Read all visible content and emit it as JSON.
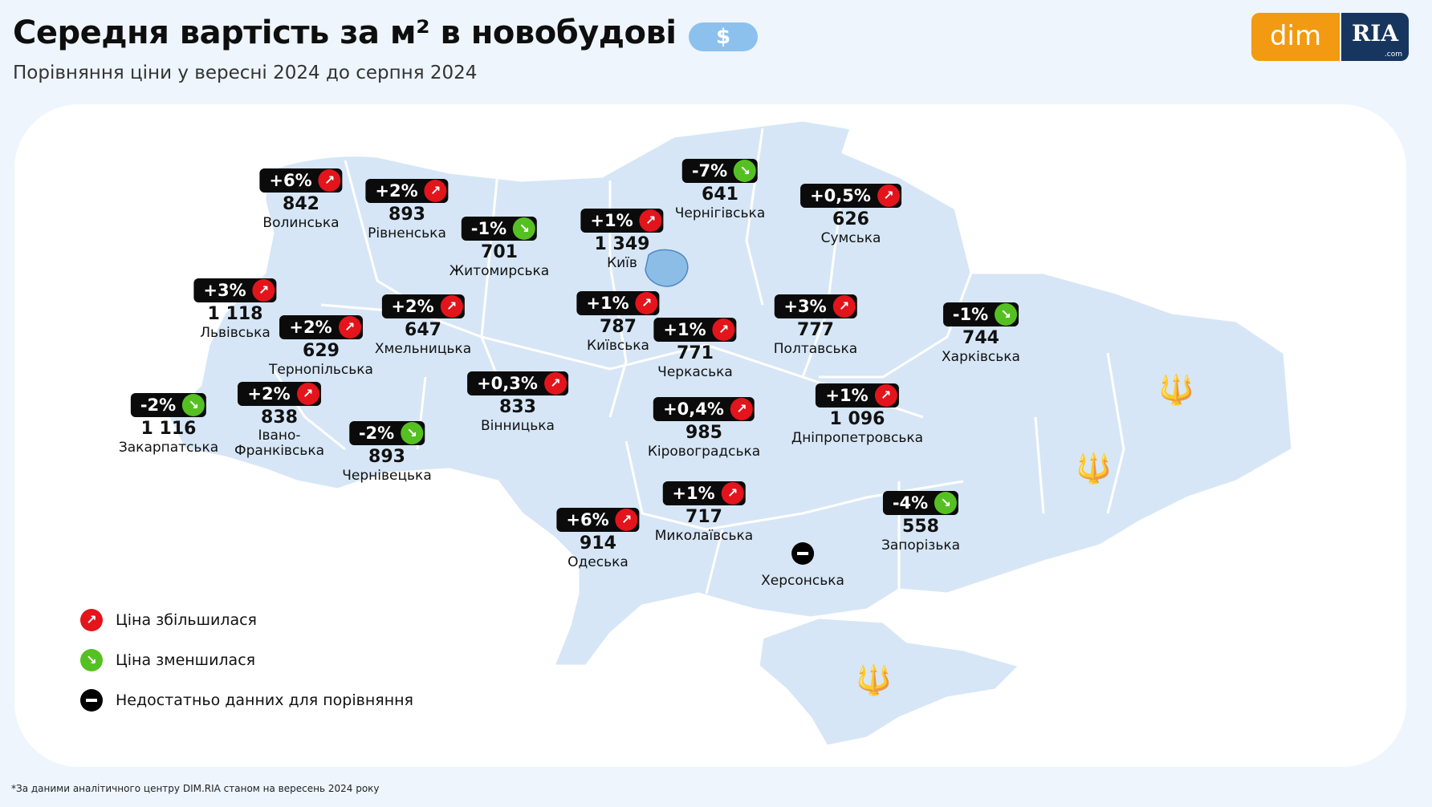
{
  "header": {
    "title": "Середня вартість за м² в новобудові",
    "currency_symbol": "$",
    "subtitle": "Порівняння ціни у вересні 2024 до серпня 2024",
    "logo": {
      "left": "dim",
      "right": "RIA",
      "right_suffix": ".com"
    }
  },
  "colors": {
    "increase": "#e3141b",
    "decrease": "#55c021",
    "no_data": "#000000",
    "map_fill": "#d6e6f6",
    "accent": "#f29a12"
  },
  "icons": {
    "increase": "arrow-up-right-icon",
    "decrease": "arrow-down-right-icon",
    "no_data": "minus-icon",
    "currency": "dollar-icon"
  },
  "regions": [
    {
      "id": "volynska",
      "name": "Волинська",
      "change": "+6%",
      "trend": "up",
      "price": "842"
    },
    {
      "id": "rivnenska",
      "name": "Рівненська",
      "change": "+2%",
      "trend": "up",
      "price": "893"
    },
    {
      "id": "zhytomyrska",
      "name": "Житомирська",
      "change": "-1%",
      "trend": "down",
      "price": "701"
    },
    {
      "id": "kyiv",
      "name": "Київ",
      "change": "+1%",
      "trend": "up",
      "price": "1 349"
    },
    {
      "id": "chernihivska",
      "name": "Чернігівська",
      "change": "-7%",
      "trend": "down",
      "price": "641"
    },
    {
      "id": "sumska",
      "name": "Сумська",
      "change": "+0,5%",
      "trend": "up",
      "price": "626"
    },
    {
      "id": "lvivska",
      "name": "Львівська",
      "change": "+3%",
      "trend": "up",
      "price": "1 118"
    },
    {
      "id": "ternopilska",
      "name": "Тернопільська",
      "change": "+2%",
      "trend": "up",
      "price": "629"
    },
    {
      "id": "khmelnytska",
      "name": "Хмельницька",
      "change": "+2%",
      "trend": "up",
      "price": "647"
    },
    {
      "id": "kyivska",
      "name": "Київська",
      "change": "+1%",
      "trend": "up",
      "price": "787"
    },
    {
      "id": "cherkaska",
      "name": "Черкаська",
      "change": "+1%",
      "trend": "up",
      "price": "771"
    },
    {
      "id": "poltavska",
      "name": "Полтавська",
      "change": "+3%",
      "trend": "up",
      "price": "777"
    },
    {
      "id": "kharkivska",
      "name": "Харківська",
      "change": "-1%",
      "trend": "down",
      "price": "744"
    },
    {
      "id": "zakarpatska",
      "name": "Закарпатська",
      "change": "-2%",
      "trend": "down",
      "price": "1 116"
    },
    {
      "id": "ivano-frankivska",
      "name": "Івано-\nФранківська",
      "change": "+2%",
      "trend": "up",
      "price": "838"
    },
    {
      "id": "chernivetska",
      "name": "Чернівецька",
      "change": "-2%",
      "trend": "down",
      "price": "893"
    },
    {
      "id": "vinnytska",
      "name": "Вінницька",
      "change": "+0,3%",
      "trend": "up",
      "price": "833"
    },
    {
      "id": "kirovohradska",
      "name": "Кіровоградська",
      "change": "+0,4%",
      "trend": "up",
      "price": "985"
    },
    {
      "id": "dnipropetrovska",
      "name": "Дніпропетровська",
      "change": "+1%",
      "trend": "up",
      "price": "1 096"
    },
    {
      "id": "odeska",
      "name": "Одеська",
      "change": "+6%",
      "trend": "up",
      "price": "914"
    },
    {
      "id": "mykolaivska",
      "name": "Миколаївська",
      "change": "+1%",
      "trend": "up",
      "price": "717"
    },
    {
      "id": "zaporizka",
      "name": "Запорізька",
      "change": "-4%",
      "trend": "down",
      "price": "558"
    },
    {
      "id": "khersonska",
      "name": "Херсонська",
      "change": "",
      "trend": "none",
      "price": ""
    }
  ],
  "legend": {
    "increase": "Ціна збільшилася",
    "decrease": "Ціна зменшилася",
    "no_data": "Недостатньо данних для порівняння"
  },
  "footnote": "*За даними аналітичного центру DIM.RIA станом на вересень 2024 року"
}
